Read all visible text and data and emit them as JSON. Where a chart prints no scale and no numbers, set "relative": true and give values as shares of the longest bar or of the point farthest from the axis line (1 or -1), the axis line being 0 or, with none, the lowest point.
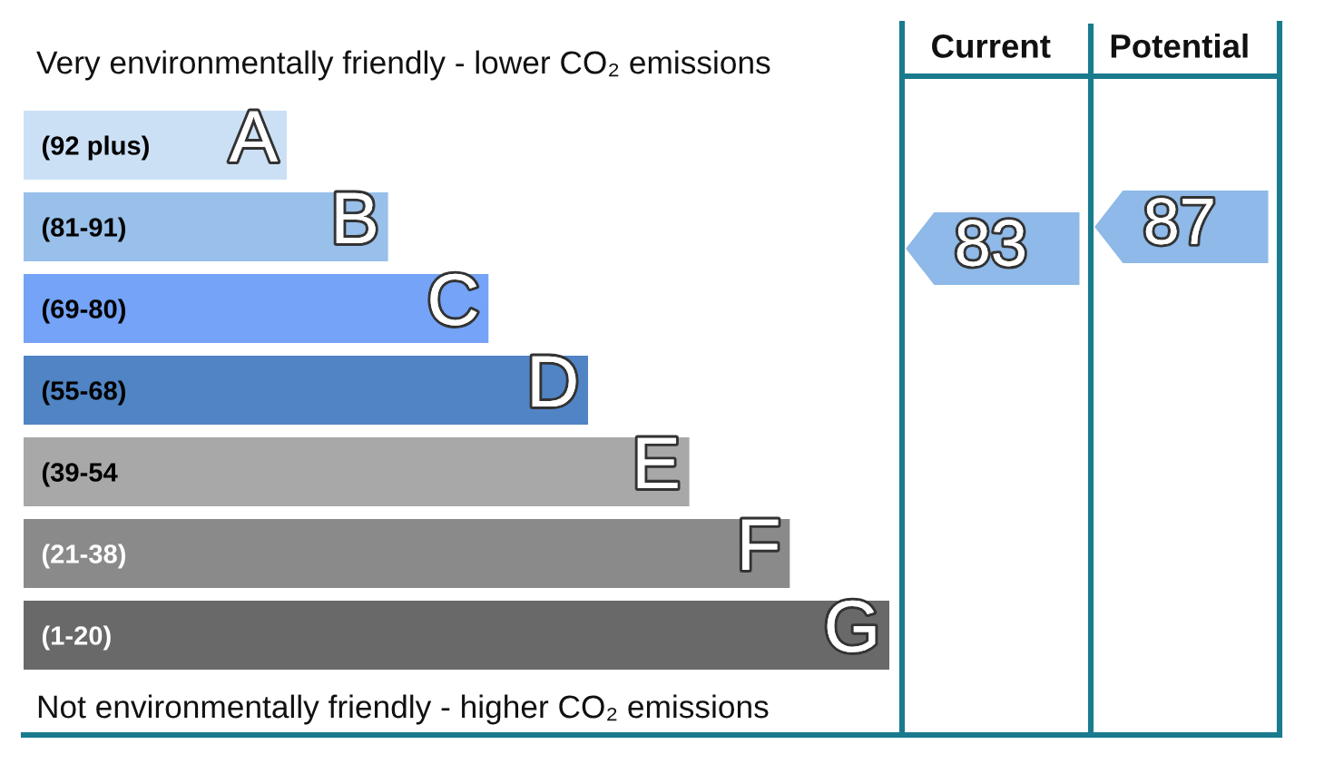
{
  "chart_data": [
    {
      "type": "bar",
      "orientation": "horizontal",
      "relative": true,
      "title": "Very environmentally friendly - lower CO₂ emissions",
      "categories": [
        "(92 plus)",
        "(81-91)",
        "(69-80)",
        "(55-68)",
        "(39-54",
        "(21-38)",
        "(1-20)"
      ],
      "values": [
        0.304,
        0.421,
        0.537,
        0.652,
        0.769,
        0.885,
        1
      ],
      "colors": [
        "#cce0f5",
        "#98c0ea",
        "#74a3f7",
        "#5084c4",
        "#a8a8a8",
        "#8a8a8a",
        "#696969"
      ],
      "annotations": [
        {
          "text": "A",
          "y": "(92 plus)"
        },
        {
          "text": "B",
          "y": "(81-91)"
        },
        {
          "text": "C",
          "y": "(69-80)"
        },
        {
          "text": "D",
          "y": "(55-68)"
        },
        {
          "text": "E",
          "y": "(39-54"
        },
        {
          "text": "F",
          "y": "(21-38)"
        },
        {
          "text": "G",
          "y": "(1-20)"
        },
        "Not environmentally friendly - higher CO₂ emissions"
      ]
    },
    {
      "type": "other",
      "categories": [
        "Current",
        "Potential"
      ],
      "values": [
        83,
        87
      ],
      "colors": [
        "#8eb9e8",
        "#8eb9e8"
      ],
      "data_labels": true
    }
  ]
}
